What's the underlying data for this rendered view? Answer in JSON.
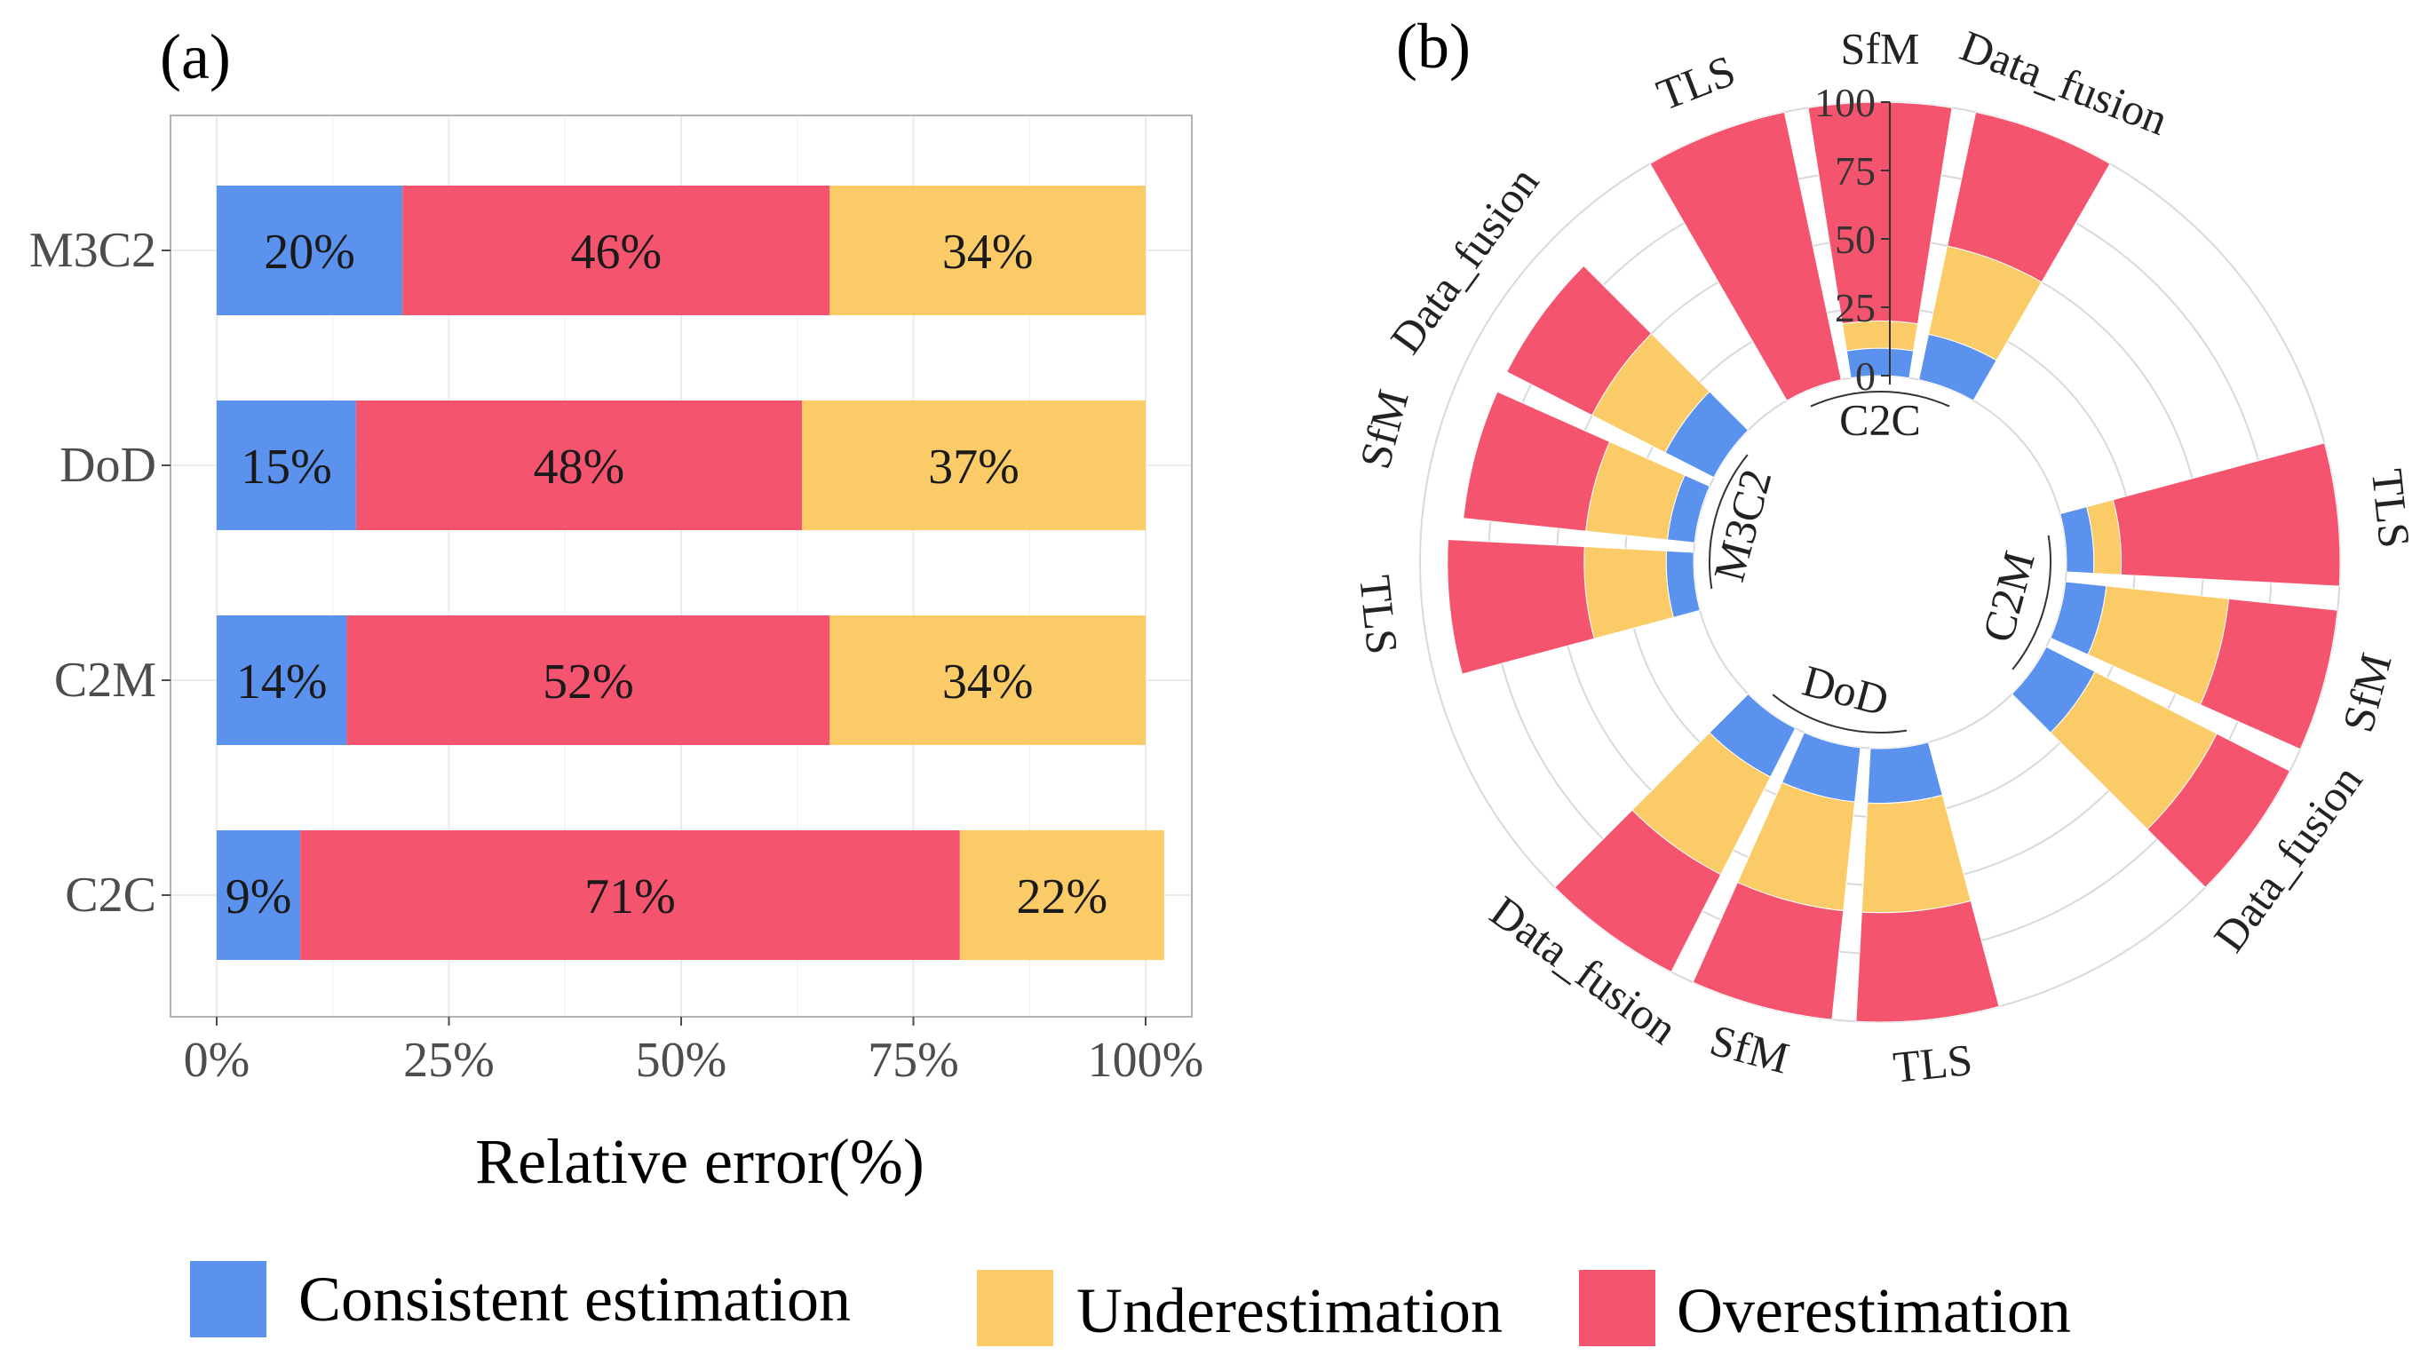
{
  "legend": [
    {
      "name": "Consistent estimation",
      "color": "#5b92ee"
    },
    {
      "name": "Underestimation",
      "color": "#fbcb67"
    },
    {
      "name": "Overestimation",
      "color": "#f5546f"
    }
  ],
  "chart_data": [
    {
      "panel": "(a)",
      "type": "bar",
      "orientation": "horizontal",
      "stacked": true,
      "categories": [
        "M3C2",
        "DoD",
        "C2M",
        "C2C"
      ],
      "series": [
        {
          "name": "Consistent estimation",
          "values": [
            20,
            15,
            14,
            9
          ],
          "labels": [
            "20%",
            "15%",
            "14%",
            "9%"
          ]
        },
        {
          "name": "Overestimation",
          "values": [
            46,
            48,
            52,
            71
          ],
          "labels": [
            "46%",
            "48%",
            "52%",
            "71%"
          ]
        },
        {
          "name": "Underestimation",
          "values": [
            34,
            37,
            34,
            22
          ],
          "labels": [
            "34%",
            "37%",
            "34%",
            "22%"
          ]
        }
      ],
      "xlabel": "Relative error(%)",
      "xticks": [
        "0%",
        "25%",
        "50%",
        "75%",
        "100%"
      ],
      "xlim": [
        0,
        100
      ],
      "grid": true
    },
    {
      "panel": "(b)",
      "type": "bar",
      "coordinates": "polar",
      "stacked": true,
      "groups": [
        {
          "name": "C2C",
          "items": [
            {
              "name": "TLS",
              "consistent": 0,
              "underestimation": 0,
              "overestimation": 100
            },
            {
              "name": "SfM",
              "consistent": 10,
              "underestimation": 10,
              "overestimation": 80
            },
            {
              "name": "Data_fusion",
              "consistent": 17,
              "underestimation": 33,
              "overestimation": 50
            }
          ]
        },
        {
          "name": "C2M",
          "items": [
            {
              "name": "TLS",
              "consistent": 10,
              "underestimation": 10,
              "overestimation": 80
            },
            {
              "name": "SfM",
              "consistent": 15,
              "underestimation": 45,
              "overestimation": 40
            },
            {
              "name": "Data_fusion",
              "consistent": 20,
              "underestimation": 50,
              "overestimation": 30
            }
          ]
        },
        {
          "name": "DoD",
          "items": [
            {
              "name": "TLS",
              "consistent": 20,
              "underestimation": 40,
              "overestimation": 40
            },
            {
              "name": "SfM",
              "consistent": 20,
              "underestimation": 40,
              "overestimation": 40
            },
            {
              "name": "Data_fusion",
              "consistent": 20,
              "underestimation": 40,
              "overestimation": 40
            }
          ]
        },
        {
          "name": "M3C2",
          "items": [
            {
              "name": "TLS",
              "consistent": 10,
              "underestimation": 30,
              "overestimation": 50
            },
            {
              "name": "SfM",
              "consistent": 10,
              "underestimation": 30,
              "overestimation": 45
            },
            {
              "name": "Data_fusion",
              "consistent": 20,
              "underestimation": 30,
              "overestimation": 35
            }
          ]
        }
      ],
      "rticks": [
        "0",
        "25",
        "50",
        "75",
        "100"
      ],
      "rlim": [
        0,
        100
      ]
    }
  ]
}
